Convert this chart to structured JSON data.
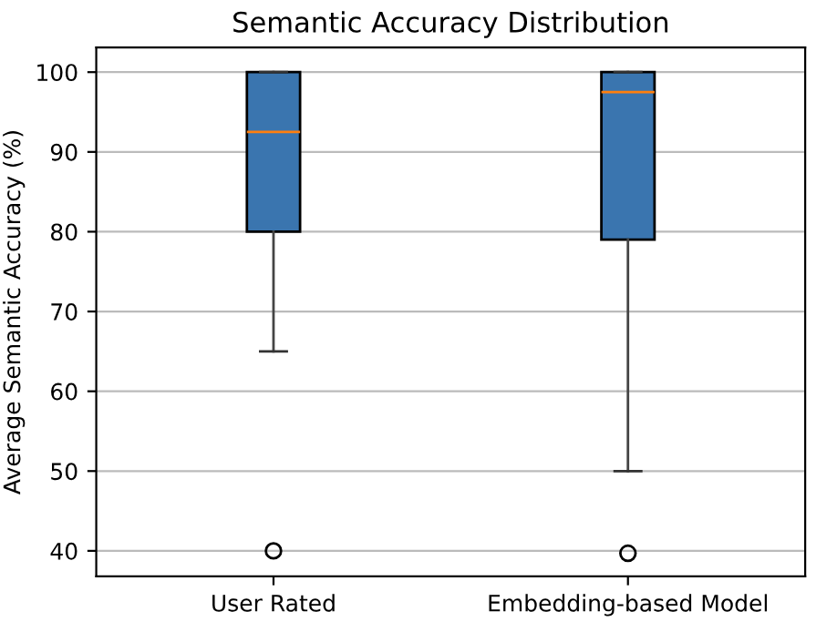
{
  "chart_data": {
    "type": "box",
    "title": "Semantic Accuracy Distribution",
    "ylabel": "Average Semantic Accuracy (%)",
    "categories": [
      "User Rated",
      "Embedding-based Model"
    ],
    "boxes": [
      {
        "low": 65,
        "q1": 80,
        "median": 92.5,
        "q3": 100,
        "high": 100,
        "outliers": [
          40
        ]
      },
      {
        "low": 50,
        "q1": 79,
        "median": 97.5,
        "q3": 100,
        "high": 100,
        "outliers": [
          39.7
        ]
      }
    ],
    "color": "#3a75af",
    "ylim": [
      36.8,
      103.1
    ],
    "yticks": [
      40,
      50,
      60,
      70,
      80,
      90,
      100
    ],
    "grid": "y"
  }
}
